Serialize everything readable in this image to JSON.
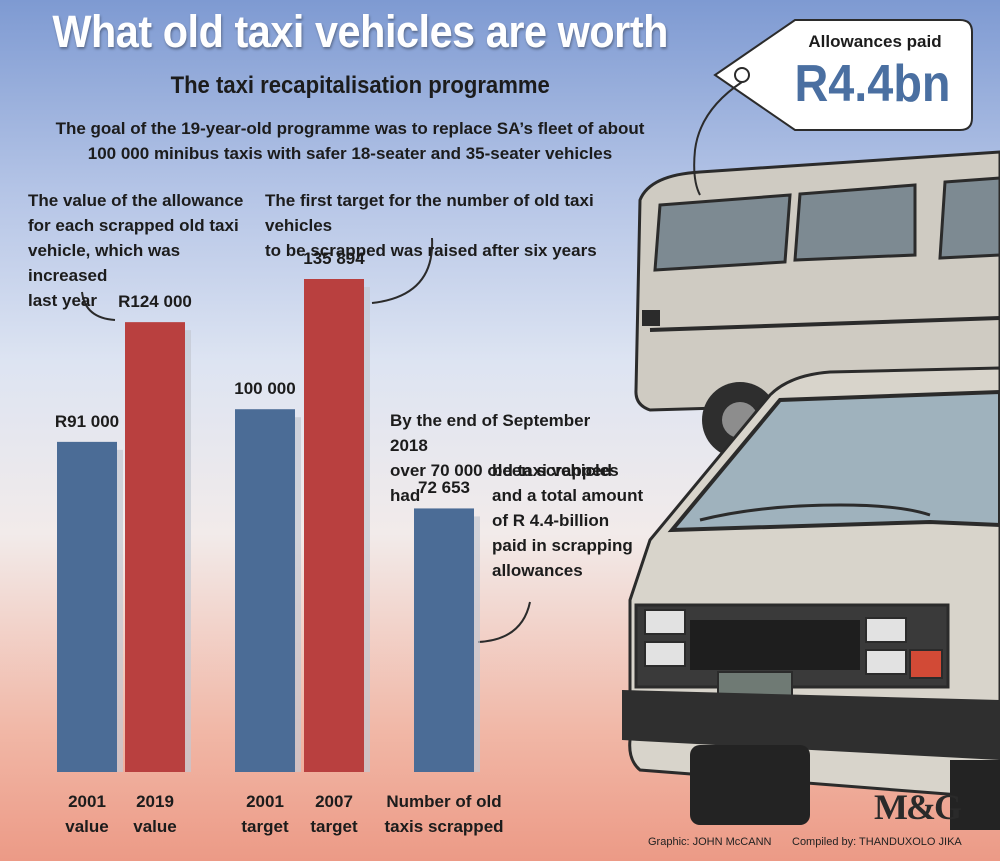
{
  "header": {
    "title": "What old taxi vehicles are worth",
    "subtitle": "The taxi recapitalisation programme",
    "intro_line1": "The goal of the 19-year-old programme was to replace SA’s fleet of about",
    "intro_line2": "100 000 minibus taxis with safer 18-seater and 35-seater vehicles"
  },
  "tag": {
    "label": "Allowances paid",
    "value": "R4.4bn"
  },
  "notes": {
    "allowance": [
      "The value of the allowance",
      "for each scrapped old taxi",
      "vehicle, which was increased",
      "last year"
    ],
    "target": [
      "The first target for the number of old taxi vehicles",
      "to be scrapped was raised after six years"
    ],
    "scrapped_a": [
      "By the end of September 2018",
      "over 70 000 old taxi vehicles had"
    ],
    "scrapped_b": [
      "been scrapped",
      "and a total amount",
      "of R 4.4-billion",
      "paid in scrapping",
      "allowances"
    ]
  },
  "credits": {
    "graphic": "Graphic: JOHN McCANN",
    "compiled": "Compiled by: THANDUXOLO JIKA"
  },
  "logo": "M&G",
  "colors": {
    "blue_bar": "#4b6c96",
    "red_bar": "#b9403f",
    "bar_shadow": "#c3c8d2",
    "tag_value": "#4a6fa1"
  },
  "chart_data": {
    "type": "bar",
    "bars": [
      {
        "category": [
          "2001",
          "value"
        ],
        "value": 91000,
        "label": "R91 000",
        "color": "#4b6c96"
      },
      {
        "category": [
          "2019",
          "value"
        ],
        "value": 124000,
        "label": "R124 000",
        "color": "#b9403f"
      },
      {
        "category": [
          "2001",
          "target"
        ],
        "value": 100000,
        "label": "100 000",
        "color": "#4b6c96"
      },
      {
        "category": [
          "2007",
          "target"
        ],
        "value": 135894,
        "label": "135 894",
        "color": "#b9403f"
      },
      {
        "category": [
          "Number of old",
          "taxis scrapped"
        ],
        "value": 72653,
        "label": "72 653",
        "color": "#4b6c96"
      }
    ],
    "title": "What old taxi vehicles are worth",
    "xlabel": "",
    "ylabel": "",
    "grid": false
  }
}
